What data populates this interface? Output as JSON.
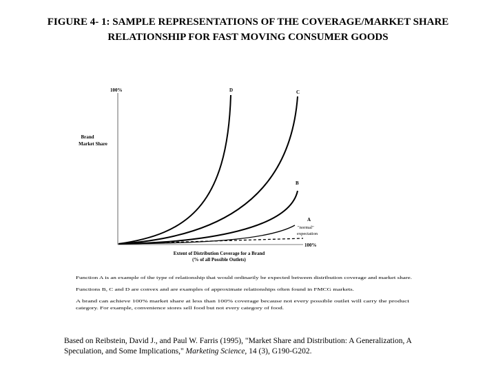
{
  "title": [
    "FIGURE 4- 1: SAMPLE REPRESENTATIONS OF THE COVERAGE/MARKET SHARE",
    "RELATIONSHIP FOR FAST MOVING CONSUMER GOODS"
  ],
  "figure": {
    "y_axis_top": "100%",
    "y_axis_label": [
      "Brand",
      "Market Share"
    ],
    "curves": [
      {
        "label": "D"
      },
      {
        "label": "C"
      },
      {
        "label": "B"
      },
      {
        "label": "A"
      }
    ],
    "a_note": [
      "\"normal\"",
      "expectation"
    ],
    "x_axis_end": "100%",
    "x_axis_label": [
      "Extent of Distribution Coverage for a Brand",
      "(% of all Possible Outlets)"
    ]
  },
  "notes": [
    "Function A is an example of the type of relationship that would ordinarily be expected between distribution coverage and market share.",
    "Functions B, C and D are convex and are examples of approximate relationships often found in FMCG markets.",
    "A brand can achieve 100% market share at less than 100% coverage because not every possible outlet will carry the product",
    "category.  For example, convenience stores sell food but not every category of food."
  ],
  "citation": {
    "line1": "Based on Reibstein, David J., and Paul W. Farris (1995), \"Market Share and Distribution: A Generalization, A",
    "line2_start": "Speculation, and Some Implications,\" ",
    "journal": "Marketing Science",
    "line2_end": ", 14 (3), G190-G202."
  }
}
